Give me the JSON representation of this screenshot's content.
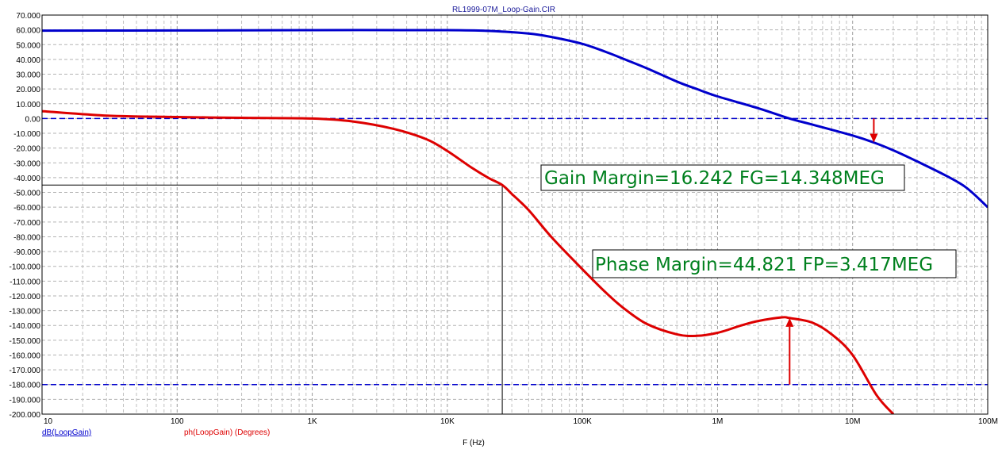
{
  "chart_data": {
    "type": "line",
    "title": "RL1999-07M_Loop-Gain.CIR",
    "xlabel": "F (Hz)",
    "x_scale": "log",
    "xlim": [
      10,
      100000000
    ],
    "ylim": [
      -200,
      70
    ],
    "y_ticks": [
      "70.000",
      "60.000",
      "50.000",
      "40.000",
      "30.000",
      "20.000",
      "10.000",
      "0.00",
      "-10.000",
      "-20.000",
      "-30.000",
      "-40.000",
      "-50.000",
      "-60.000",
      "-70.000",
      "-80.000",
      "-90.000",
      "-100.000",
      "-110.000",
      "-120.000",
      "-130.000",
      "-140.000",
      "-150.000",
      "-160.000",
      "-170.000",
      "-180.000",
      "-190.000",
      "-200.000"
    ],
    "x_ticks": [
      {
        "value": 10,
        "label": "10"
      },
      {
        "value": 100,
        "label": "100"
      },
      {
        "value": 1000,
        "label": "1K"
      },
      {
        "value": 10000,
        "label": "10K"
      },
      {
        "value": 100000,
        "label": "100K"
      },
      {
        "value": 1000000,
        "label": "1M"
      },
      {
        "value": 10000000,
        "label": "10M"
      },
      {
        "value": 100000000,
        "label": "100M"
      }
    ],
    "grid": true,
    "series": [
      {
        "name": "dB(LoopGain)",
        "color": "#0000cc",
        "x": [
          10,
          100,
          1000,
          10000,
          20000,
          40000,
          60000,
          100000,
          150000,
          200000,
          300000,
          500000,
          700000,
          1000000,
          2000000,
          3417000,
          5000000,
          10000000,
          14348000,
          20000000,
          30000000,
          50000000,
          70000000,
          100000000
        ],
        "y": [
          59.5,
          59.6,
          59.8,
          59.8,
          59.3,
          57.5,
          55,
          50.5,
          45,
          40.5,
          34,
          25,
          20,
          15,
          7,
          0,
          -4,
          -11.5,
          -16.2,
          -21.5,
          -29,
          -39,
          -47,
          -60
        ]
      },
      {
        "name": "ph(LoopGain) (Degrees)",
        "color": "#dd0000",
        "x": [
          10,
          30,
          100,
          300,
          1000,
          2000,
          4000,
          7000,
          10000,
          15000,
          20000,
          25500,
          30000,
          40000,
          60000,
          100000,
          150000,
          200000,
          300000,
          500000,
          700000,
          1000000,
          1500000,
          2000000,
          3000000,
          3417000,
          5000000,
          7000000,
          10000000,
          15000000,
          20000000
        ],
        "y": [
          5,
          2,
          1,
          0.5,
          0,
          -2,
          -7,
          -14,
          -22,
          -33,
          -40,
          -45,
          -51,
          -62,
          -81,
          -102,
          -118,
          -128,
          -139,
          -146,
          -147,
          -145,
          -140,
          -137,
          -134.5,
          -135,
          -138,
          -146,
          -160,
          -187,
          -200
        ]
      }
    ],
    "reference_lines": [
      {
        "y": 0,
        "color": "#0000cc"
      },
      {
        "y": -180,
        "color": "#0000cc"
      }
    ],
    "crosshair": {
      "x": 25500,
      "y": -45
    },
    "markers": [
      {
        "x": 14348000,
        "from_y": 0,
        "to_y": -16.2
      },
      {
        "x": 3417000,
        "from_y": -180,
        "to_y": -135
      }
    ],
    "annotations": [
      {
        "text": "Gain Margin=16.242 FG=14.348MEG"
      },
      {
        "text": "Phase Margin=44.821 FP=3.417MEG"
      }
    ]
  }
}
